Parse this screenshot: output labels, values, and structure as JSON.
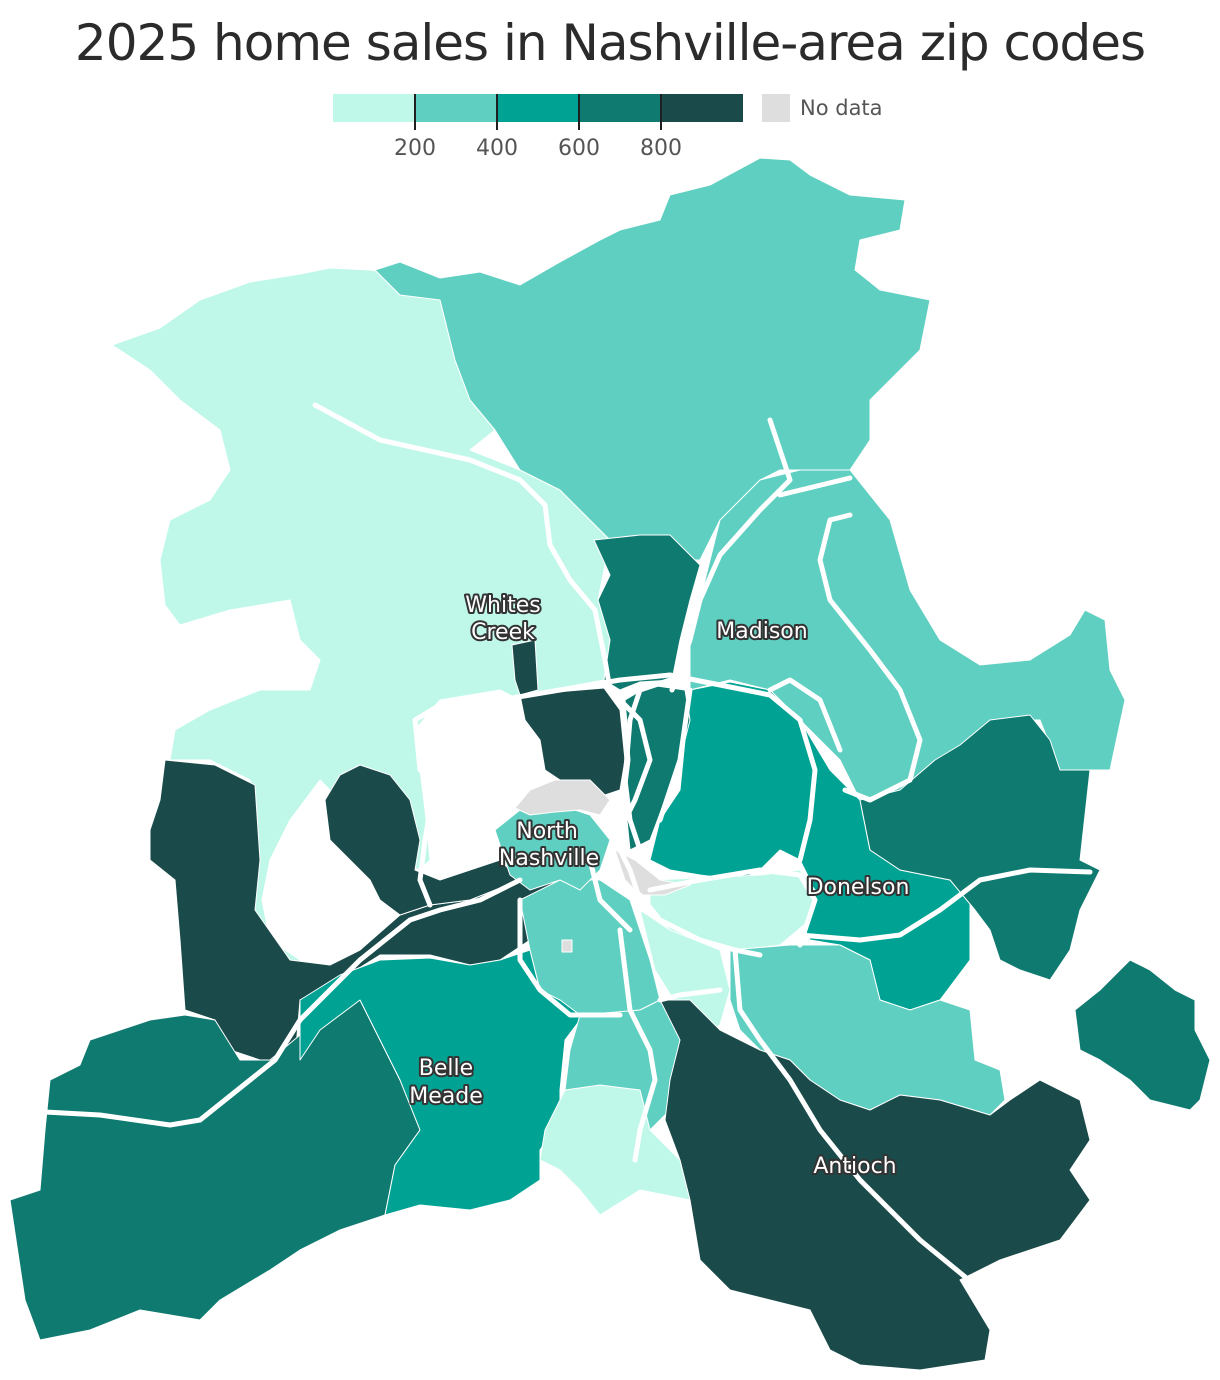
{
  "title": "2025 home sales in Nashville-area zip codes",
  "legend": {
    "bins": [
      {
        "color": "#bff8e9"
      },
      {
        "color": "#5ecfc0"
      },
      {
        "color": "#00a393"
      },
      {
        "color": "#0f7a70"
      },
      {
        "color": "#1b4a4a"
      }
    ],
    "tick_labels": [
      "200",
      "400",
      "600",
      "800"
    ],
    "no_data_label": "No data",
    "no_data_color": "#dedede"
  },
  "colors": {
    "bin1": "#bff8e9",
    "bin2": "#5ecfc0",
    "bin3": "#00a393",
    "bin4": "#0f7a70",
    "bin5": "#1b4a4a",
    "no_data": "#dedede",
    "highway": "#ffffff"
  },
  "places": {
    "whites_creek": [
      "Whites",
      "Creek"
    ],
    "madison": "Madison",
    "north_nashville": [
      "North",
      "Nashville"
    ],
    "donelson": "Donelson",
    "belle_meade": [
      "Belle",
      "Meade"
    ],
    "antioch": "Antioch"
  }
}
